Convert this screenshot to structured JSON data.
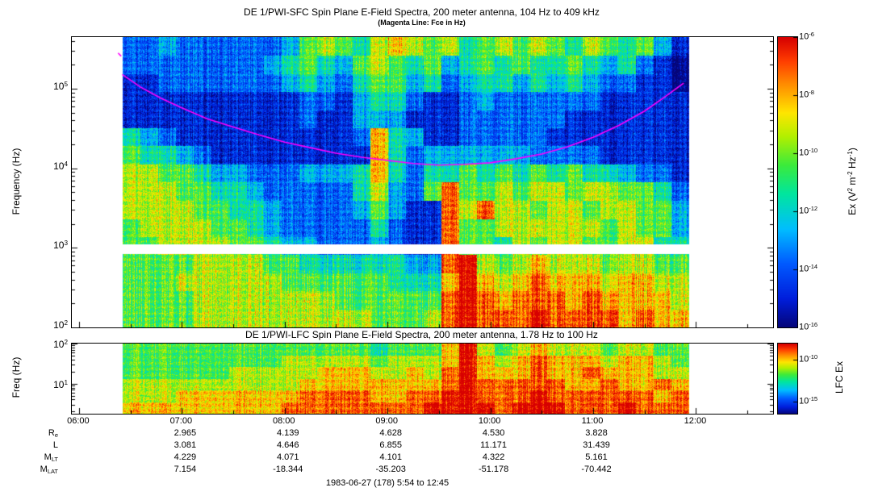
{
  "chart_data": [
    {
      "type": "heatmap",
      "instrument": "DE 1/PWI-SFC",
      "title": "DE 1/PWI-SFC  Spin Plane E-Field Spectra, 200 meter antenna, 104 Hz to 409 kHz",
      "subtitle": "(Magenta Line: Fce in Hz)",
      "ylabel": "Frequency (Hz)",
      "x_domain_hours": [
        5.93,
        12.75
      ],
      "x_data_hours": [
        6.42,
        11.93
      ],
      "x_tick_hours": [
        6,
        7,
        8,
        9,
        10,
        11,
        12
      ],
      "x_tick_labels": [
        "06:00",
        "07:00",
        "08:00",
        "09:00",
        "10:00",
        "11:00",
        "12:00"
      ],
      "log_f_range": [
        2.0,
        5.65
      ],
      "y_ticks": [
        {
          "base": "10",
          "exp": "2",
          "logf": 2
        },
        {
          "base": "10",
          "exp": "3",
          "logf": 3
        },
        {
          "base": "10",
          "exp": "4",
          "logf": 4
        },
        {
          "base": "10",
          "exp": "5",
          "logf": 5
        }
      ],
      "band_gap_logf": [
        2.93,
        3.05
      ],
      "colorbar": {
        "label_parts": [
          [
            "Ex (V",
            0
          ],
          [
            "2",
            1
          ],
          [
            " m",
            0
          ],
          [
            "-2",
            1
          ],
          [
            " Hz",
            0
          ],
          [
            "-1",
            1
          ],
          [
            ")",
            0
          ]
        ],
        "domain_log_power": [
          -16,
          -6
        ],
        "ticks": [
          {
            "base": "10",
            "exp": "-6",
            "v": -6
          },
          {
            "base": "10",
            "exp": "-8",
            "v": -8
          },
          {
            "base": "10",
            "exp": "-10",
            "v": -10
          },
          {
            "base": "10",
            "exp": "-12",
            "v": -12
          },
          {
            "base": "10",
            "exp": "-14",
            "v": -14
          },
          {
            "base": "10",
            "exp": "-16",
            "v": -16
          }
        ]
      },
      "level_encoding": "each grid char 0-9 maps linearly to log10 spectral density -16 to -6 V2 m-2 Hz-1",
      "grid_rows_top_to_bottom": [
        "22322222235654676564565654654531",
        "22222222345435654534545445434210",
        "11222222234324553423443434322110",
        "11111111112213442112322222211111",
        "11111111112113331112222221111111",
        "43211111111112743112222211111111",
        "54432111111111742333333222211111",
        "66554332223334742445454545443221",
        "66655443222224632585565665665542",
        "66665544322223531186866566566553",
        "56666554322222421185566666656553",
        "55666655433222321185546566556644",
        "55556666554444443389656766656655",
        "55566666655555544479767877767766",
        "55556666666655555589878887877776",
        "55556666666666555689888988887877"
      ],
      "fce_line_color": "#ff00ff",
      "fce_line_points_hour_log10hz": [
        [
          6.42,
          5.18
        ],
        [
          6.6,
          5.02
        ],
        [
          6.8,
          4.88
        ],
        [
          7.0,
          4.76
        ],
        [
          7.25,
          4.62
        ],
        [
          7.5,
          4.52
        ],
        [
          7.75,
          4.42
        ],
        [
          8.0,
          4.33
        ],
        [
          8.25,
          4.26
        ],
        [
          8.5,
          4.19
        ],
        [
          8.75,
          4.14
        ],
        [
          9.0,
          4.1
        ],
        [
          9.25,
          4.06
        ],
        [
          9.5,
          4.04
        ],
        [
          9.75,
          4.05
        ],
        [
          10.0,
          4.07
        ],
        [
          10.25,
          4.12
        ],
        [
          10.5,
          4.18
        ],
        [
          10.75,
          4.27
        ],
        [
          11.0,
          4.39
        ],
        [
          11.25,
          4.54
        ],
        [
          11.5,
          4.72
        ],
        [
          11.7,
          4.9
        ],
        [
          11.88,
          5.07
        ]
      ],
      "fce_start_mark": [
        [
          6.38,
          5.45
        ],
        [
          6.41,
          5.41
        ]
      ]
    },
    {
      "type": "heatmap",
      "instrument": "DE 1/PWI-LFC",
      "title": "DE 1/PWI-LFC  Spin Plane E-Field Spectra, 200 meter antenna, 1.78 Hz to 100 Hz",
      "ylabel": "Freq (Hz)",
      "log_f_range": [
        0.25,
        2.0
      ],
      "y_ticks": [
        {
          "base": "10",
          "exp": "1",
          "logf": 1
        },
        {
          "base": "10",
          "exp": "2",
          "logf": 2
        }
      ],
      "colorbar": {
        "label": "LFC Ex",
        "domain_log_power": [
          -16.5,
          -8
        ],
        "ticks": [
          {
            "base": "10",
            "exp": "-10",
            "v": -10
          },
          {
            "base": "10",
            "exp": "-15",
            "v": -15
          }
        ]
      },
      "level_encoding": "each grid char 0-9 maps linearly to log10 spectral density -16.5 to -8",
      "grid_rows_top_to_bottom": [
        "55555555555555455579656766656655",
        "55555555566666566679767877767765",
        "55555566666777667689777877877766",
        "66666666667777777789888887787787",
        "66677777778888778899888988888878",
        "77777777788888888999989998889888"
      ]
    }
  ],
  "ephemeris": {
    "column_hours": [
      7,
      8,
      9,
      10,
      11
    ],
    "rows": [
      {
        "label": "R",
        "sub": "e",
        "values": [
          "2.965",
          "4.139",
          "4.628",
          "4.530",
          "3.828"
        ]
      },
      {
        "label": "L",
        "sub": "",
        "values": [
          "3.081",
          "4.646",
          "6.855",
          "11.171",
          "31.439"
        ]
      },
      {
        "label": "M",
        "sub": "LT",
        "values": [
          "4.229",
          "4.071",
          "4.101",
          "4.322",
          "5.161"
        ]
      },
      {
        "label": "M",
        "sub": "LAT",
        "values": [
          "7.154",
          "-18.344",
          "-35.203",
          "-51.178",
          "-70.442"
        ]
      }
    ]
  },
  "footer": "1983-06-27 (178) 5:54 to 12:45",
  "colormap_stops": [
    [
      0.0,
      5,
      5,
      120
    ],
    [
      0.1,
      0,
      30,
      220
    ],
    [
      0.22,
      0,
      90,
      255
    ],
    [
      0.34,
      0,
      190,
      255
    ],
    [
      0.46,
      0,
      230,
      160
    ],
    [
      0.56,
      60,
      235,
      60
    ],
    [
      0.66,
      180,
      240,
      0
    ],
    [
      0.74,
      255,
      230,
      0
    ],
    [
      0.84,
      255,
      140,
      0
    ],
    [
      0.92,
      255,
      60,
      0
    ],
    [
      1.0,
      215,
      0,
      0
    ]
  ]
}
